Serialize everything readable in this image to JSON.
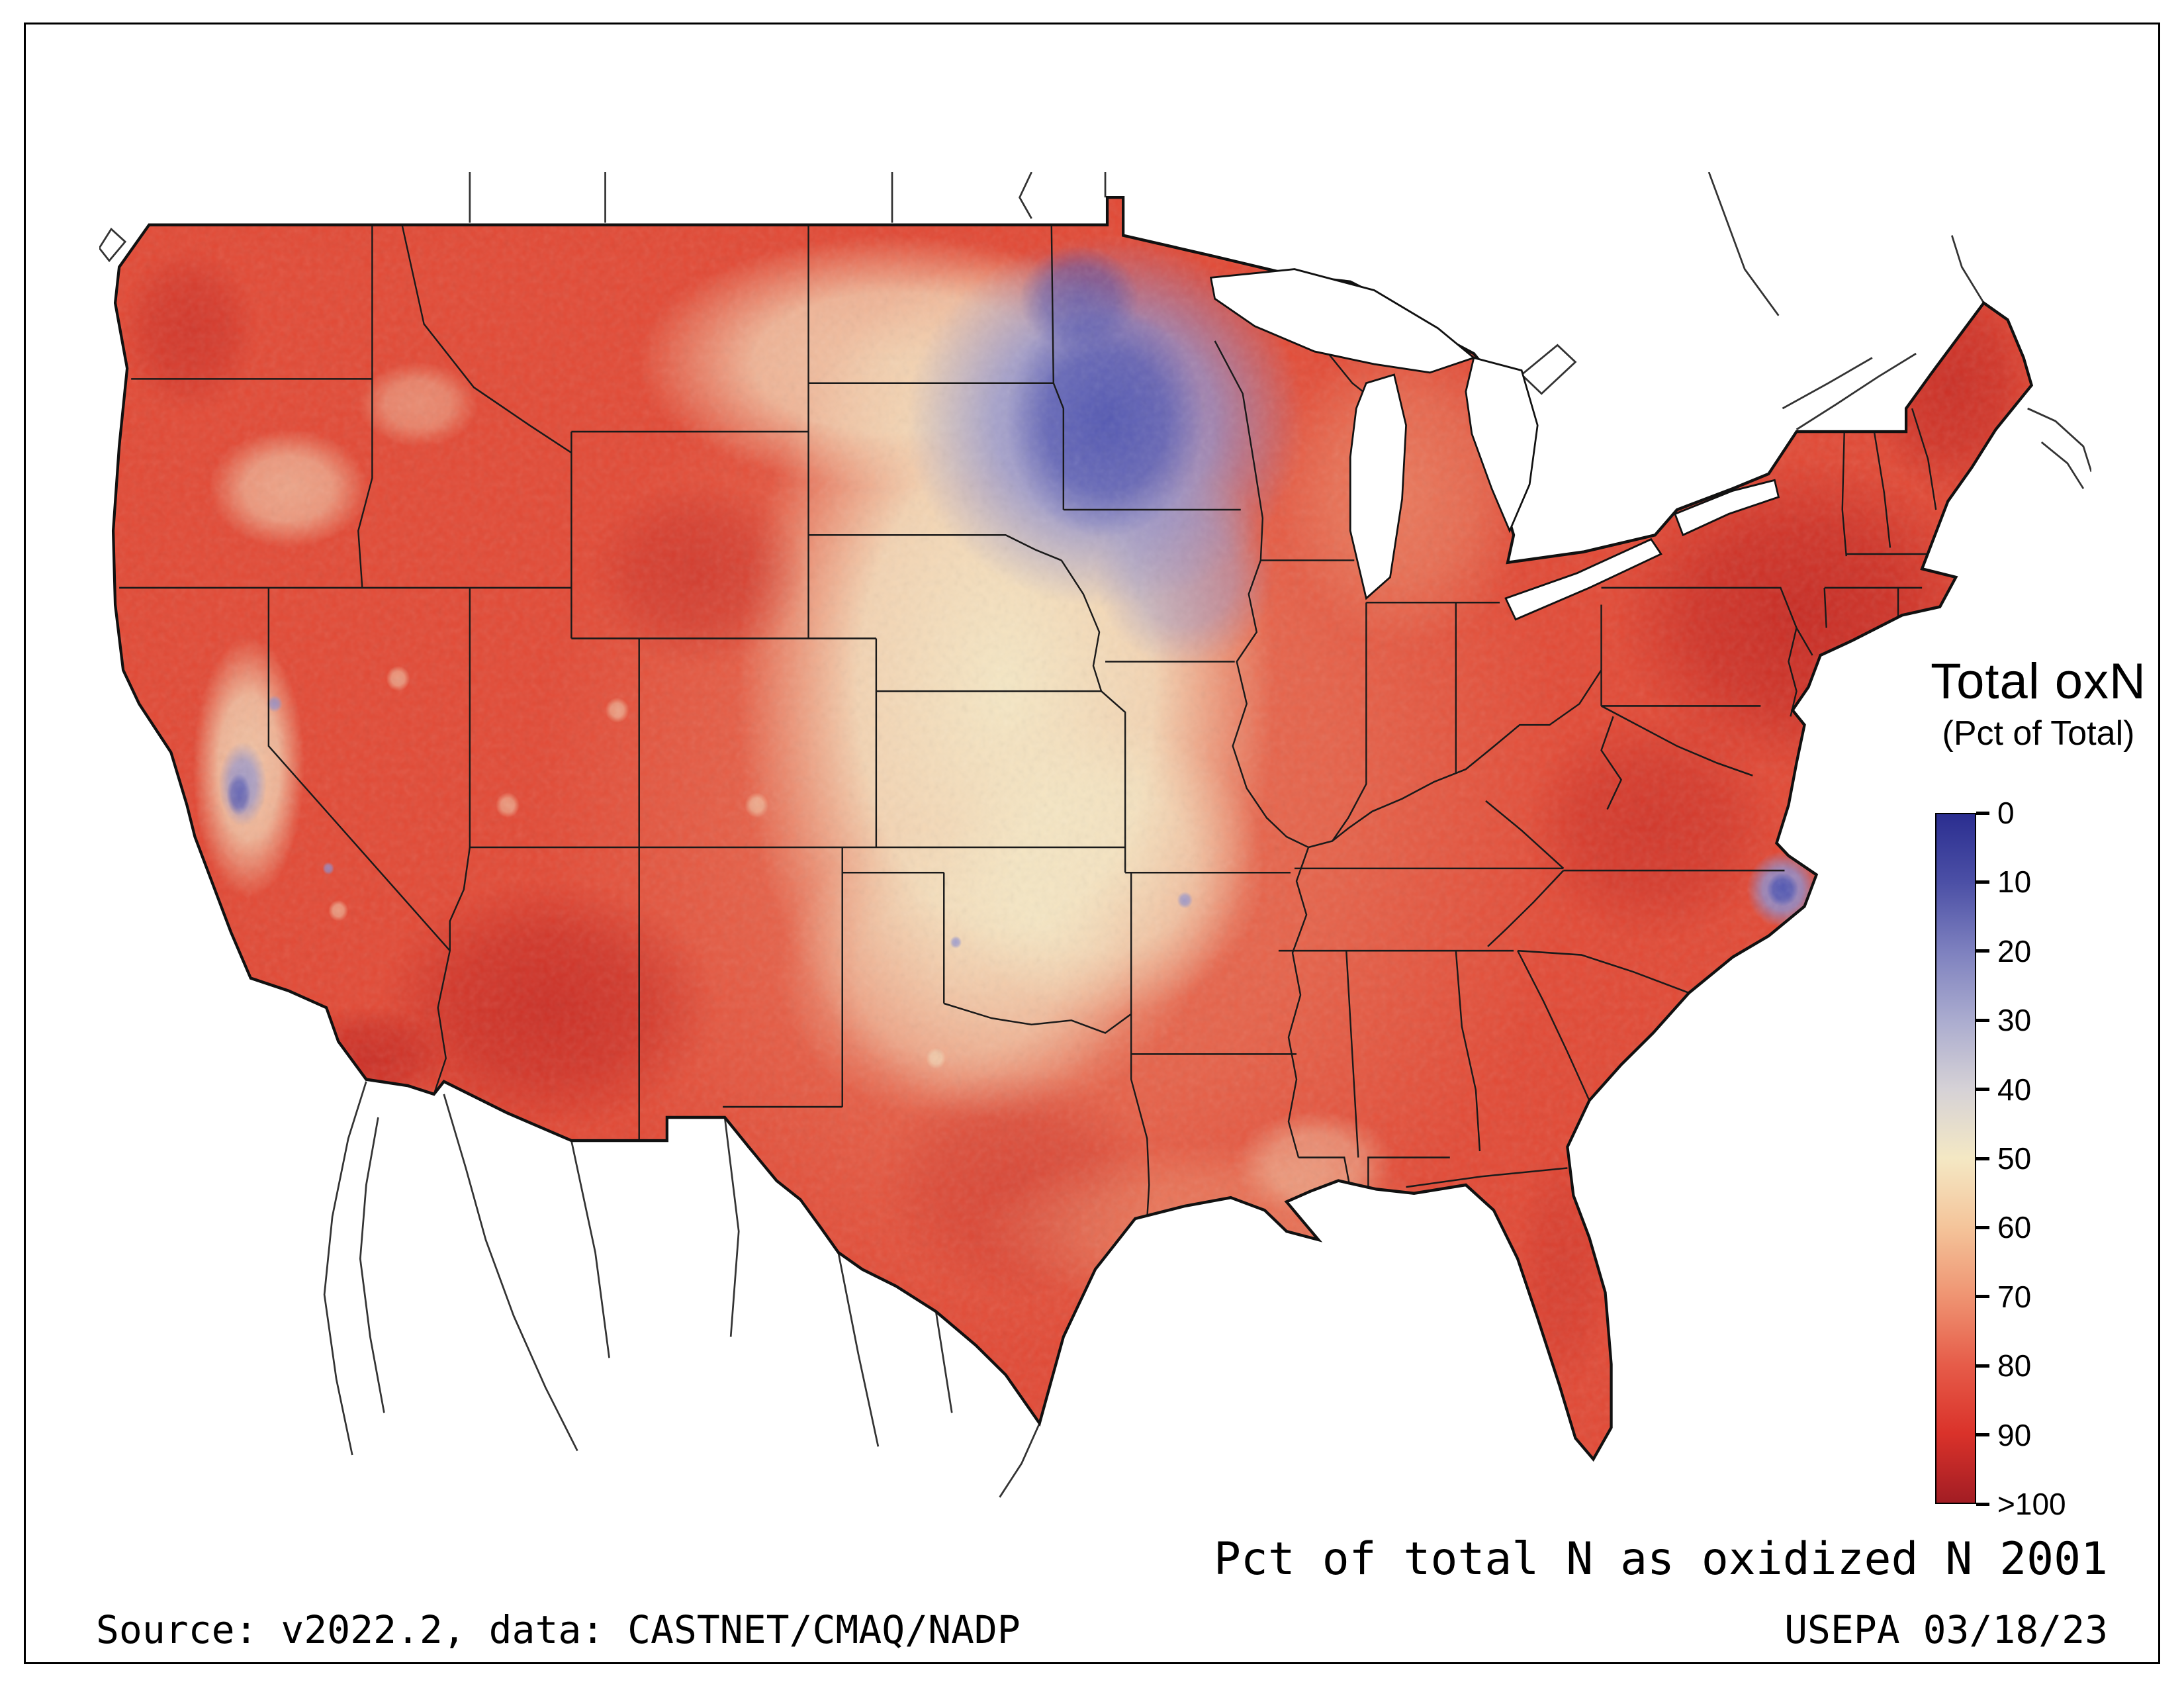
{
  "legend": {
    "title": "Total oxN",
    "subtitle": "(Pct of Total)",
    "ticks": [
      "0",
      "10",
      "20",
      "30",
      "40",
      "50",
      "60",
      "70",
      "80",
      "90",
      ">100"
    ],
    "stops": [
      "#2b2e90",
      "#4c50a6",
      "#7e81bf",
      "#abaccf",
      "#d6d2d6",
      "#f4e8c4",
      "#f4c49a",
      "#ef9472",
      "#e65c49",
      "#da322a",
      "#a21d24"
    ]
  },
  "caption": "Pct of total N as oxidized N 2001",
  "footer": {
    "source": "Source: v2022.2, data: CASTNET/CMAQ/NADP",
    "agency": "USEPA 03/18/23"
  },
  "map_colors": {
    "base_red": "#e24a36",
    "pale_center": "#f6eecb",
    "low_blue": "#4a4fae",
    "high_dark_red": "#b02020",
    "water": "#ffffff",
    "boundary": "#1a1a1a"
  }
}
